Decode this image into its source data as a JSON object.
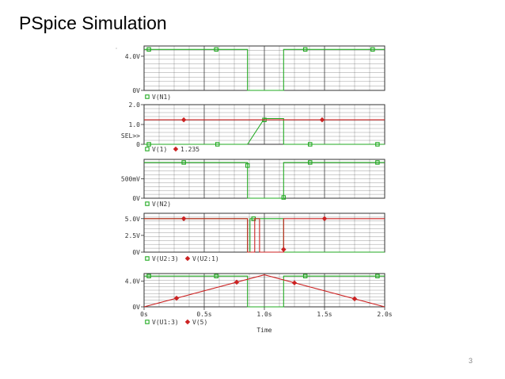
{
  "slide": {
    "title": "PSpice Simulation",
    "page_number": "3"
  },
  "colors": {
    "green": "#22aa22",
    "red": "#cc2222",
    "grid": "#333333",
    "axis": "#333333"
  },
  "chart_data": [
    {
      "type": "line",
      "name": "panel-n1",
      "ylim": [
        0,
        5.2
      ],
      "yticks": [
        {
          "v": 0,
          "label": "0V"
        },
        {
          "v": 4,
          "label": "4.0V"
        }
      ],
      "legend": [
        {
          "name": "V(N1)",
          "marker": "square",
          "color": "#22aa22"
        }
      ],
      "series": [
        {
          "name": "V(N1)",
          "color": "#22aa22",
          "marker": "square",
          "points": [
            [
              0,
              4.8
            ],
            [
              0.86,
              4.8
            ],
            [
              0.86,
              0
            ],
            [
              1.16,
              0
            ],
            [
              1.16,
              4.8
            ],
            [
              2.0,
              4.8
            ]
          ],
          "markers": [
            [
              0.04,
              4.8
            ],
            [
              0.6,
              4.8
            ],
            [
              1.34,
              4.8
            ],
            [
              1.9,
              4.8
            ]
          ]
        }
      ]
    },
    {
      "type": "line",
      "name": "panel-v1",
      "ylim": [
        0,
        2.0
      ],
      "yticks": [
        {
          "v": 0,
          "label": "0"
        },
        {
          "v": 1,
          "label": "1.0"
        },
        {
          "v": 2,
          "label": "2.0"
        }
      ],
      "extra_label": "SEL>>",
      "legend": [
        {
          "name": "V(1)",
          "marker": "square",
          "color": "#22aa22"
        },
        {
          "name": "1.235",
          "marker": "diamond",
          "color": "#cc2222"
        }
      ],
      "series": [
        {
          "name": "V(1)",
          "color": "#22aa22",
          "marker": "square",
          "points": [
            [
              0,
              0
            ],
            [
              0.86,
              0
            ],
            [
              1.0,
              1.3
            ],
            [
              1.16,
              1.3
            ],
            [
              1.16,
              0
            ],
            [
              2.0,
              0
            ]
          ],
          "markers": [
            [
              0.04,
              0
            ],
            [
              0.61,
              0
            ],
            [
              1.0,
              1.23
            ],
            [
              1.38,
              0
            ],
            [
              1.94,
              0
            ]
          ]
        },
        {
          "name": "1.235",
          "color": "#cc2222",
          "marker": "diamond",
          "points": [
            [
              0,
              1.235
            ],
            [
              2.0,
              1.235
            ]
          ],
          "markers": [
            [
              0.33,
              1.235
            ],
            [
              1.48,
              1.235
            ]
          ]
        }
      ]
    },
    {
      "type": "line",
      "name": "panel-n2",
      "ylim": [
        0,
        1.0
      ],
      "yticks": [
        {
          "v": 0,
          "label": "0V"
        },
        {
          "v": 0.5,
          "label": "500mV"
        }
      ],
      "legend": [
        {
          "name": "V(N2)",
          "marker": "square",
          "color": "#22aa22"
        }
      ],
      "series": [
        {
          "name": "V(N2)",
          "color": "#22aa22",
          "marker": "square",
          "points": [
            [
              0,
              0.92
            ],
            [
              0.86,
              0.92
            ],
            [
              0.86,
              0
            ],
            [
              1.16,
              0
            ],
            [
              1.16,
              0.92
            ],
            [
              2.0,
              0.92
            ]
          ],
          "markers": [
            [
              0.33,
              0.92
            ],
            [
              0.86,
              0.84
            ],
            [
              1.16,
              0.02
            ],
            [
              1.38,
              0.92
            ],
            [
              1.94,
              0.92
            ]
          ]
        }
      ]
    },
    {
      "type": "line",
      "name": "panel-u2",
      "ylim": [
        0,
        5.8
      ],
      "yticks": [
        {
          "v": 0,
          "label": "0V"
        },
        {
          "v": 2.5,
          "label": "2.5V"
        },
        {
          "v": 5,
          "label": "5.0V"
        }
      ],
      "legend": [
        {
          "name": "V(U2:3)",
          "marker": "square",
          "color": "#22aa22"
        },
        {
          "name": "V(U2:1)",
          "marker": "diamond",
          "color": "#cc2222"
        }
      ],
      "series": [
        {
          "name": "V(U2:3)",
          "color": "#22aa22",
          "marker": "square",
          "points": [
            [
              0,
              5.0
            ],
            [
              0.86,
              5.0
            ],
            [
              0.86,
              0
            ],
            [
              0.88,
              0
            ],
            [
              0.88,
              5.0
            ],
            [
              1.16,
              5.0
            ],
            [
              1.16,
              0
            ],
            [
              2.0,
              0
            ]
          ],
          "markers": [
            [
              0.91,
              5.0
            ]
          ]
        },
        {
          "name": "V(U2:1)",
          "color": "#cc2222",
          "marker": "diamond",
          "points": [
            [
              0,
              5.0
            ],
            [
              0.86,
              5.0
            ],
            [
              0.86,
              0
            ],
            [
              0.92,
              0
            ],
            [
              0.92,
              5.0
            ],
            [
              0.96,
              5.0
            ],
            [
              0.96,
              0
            ],
            [
              1.16,
              0
            ],
            [
              1.16,
              5.0
            ],
            [
              2.0,
              5.0
            ]
          ],
          "markers": [
            [
              0.33,
              5.0
            ],
            [
              1.16,
              0.4
            ],
            [
              1.5,
              5.0
            ]
          ]
        }
      ]
    },
    {
      "type": "line",
      "name": "panel-u1",
      "ylim": [
        0,
        5.2
      ],
      "yticks": [
        {
          "v": 0,
          "label": "0V"
        },
        {
          "v": 4,
          "label": "4.0V"
        }
      ],
      "xlim": [
        0,
        2.0
      ],
      "xticks": [
        {
          "v": 0,
          "label": "0s"
        },
        {
          "v": 0.5,
          "label": "0.5s"
        },
        {
          "v": 1.0,
          "label": "1.0s"
        },
        {
          "v": 1.5,
          "label": "1.5s"
        },
        {
          "v": 2.0,
          "label": "2.0s"
        }
      ],
      "xlabel": "Time",
      "legend": [
        {
          "name": "V(U1:3)",
          "marker": "square",
          "color": "#22aa22"
        },
        {
          "name": "V(5)",
          "marker": "diamond",
          "color": "#cc2222"
        }
      ],
      "series": [
        {
          "name": "V(U1:3)",
          "color": "#22aa22",
          "marker": "square",
          "points": [
            [
              0,
              4.8
            ],
            [
              0.86,
              4.8
            ],
            [
              0.86,
              0
            ],
            [
              1.16,
              0
            ],
            [
              1.16,
              4.8
            ],
            [
              2.0,
              4.8
            ]
          ],
          "markers": [
            [
              0.04,
              4.8
            ],
            [
              0.6,
              4.8
            ],
            [
              1.34,
              4.8
            ],
            [
              1.94,
              4.8
            ]
          ]
        },
        {
          "name": "V(5)",
          "color": "#cc2222",
          "marker": "diamond",
          "points": [
            [
              0,
              0
            ],
            [
              1.0,
              5.0
            ],
            [
              2.0,
              0
            ]
          ],
          "markers": [
            [
              0.27,
              1.35
            ],
            [
              0.77,
              3.85
            ],
            [
              1.25,
              3.75
            ],
            [
              1.75,
              1.25
            ]
          ]
        }
      ]
    }
  ]
}
